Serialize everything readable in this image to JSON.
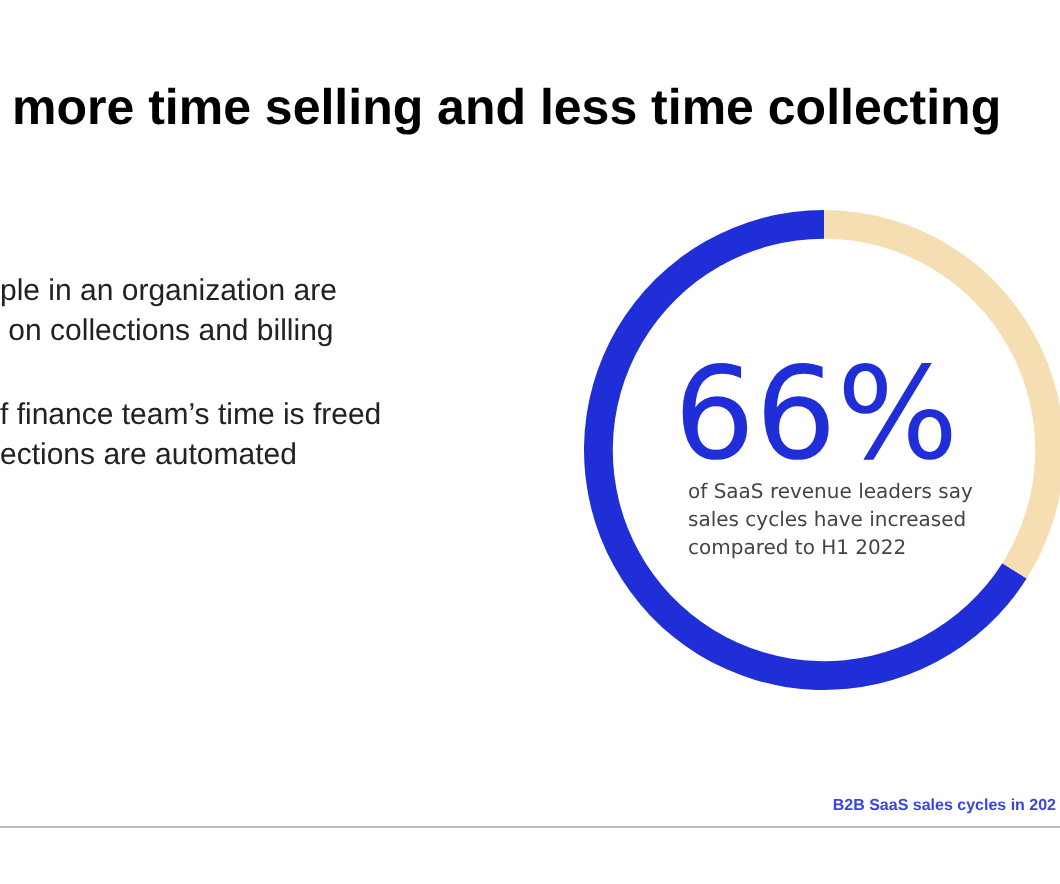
{
  "chart_data": {
    "type": "donut",
    "title": "more time selling and less time collecting",
    "categories": [
      null,
      null
    ],
    "values": [
      66,
      34
    ],
    "colors": [
      "#1f2ed6",
      "#f5dfb2"
    ],
    "value_labels": [
      "66%",
      null
    ],
    "annotations": [
      "of SaaS revenue leaders say\nsales cycles have increased\ncompared to H1 2022",
      "ple in an organization are\n on collections and billing",
      "f finance team’s time is freed\nections are automated",
      "B2B SaaS sales cycles in 202"
    ],
    "legend": false
  }
}
